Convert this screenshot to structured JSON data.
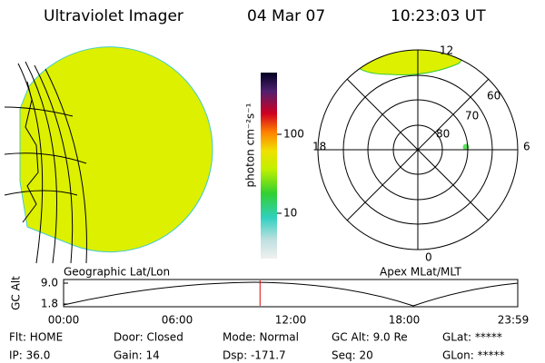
{
  "header": {
    "title": "Ultraviolet Imager",
    "date": "04 Mar 07",
    "time": "10:23:03 UT"
  },
  "colorbar": {
    "label": "photon cm⁻²s⁻¹",
    "scale": "log",
    "ticks": [
      10,
      100
    ]
  },
  "geo_label": "Geographic Lat/Lon",
  "polar": {
    "label": "Apex MLat/MLT",
    "mlt_labels": [
      "12",
      "6",
      "0",
      "18"
    ],
    "lat_labels": [
      "60",
      "70",
      "80"
    ]
  },
  "altitude_plot": {
    "ylabel": "GC Alt",
    "yticks": [
      {
        "value": 1.8,
        "label": "1.8"
      },
      {
        "value": 9.0,
        "label": "9.0"
      }
    ],
    "ylim": [
      1.8,
      9.0
    ],
    "xticks": [
      "00:00",
      "06:00",
      "12:00",
      "18:00",
      "23:59"
    ],
    "marker_hours": 10.38
  },
  "footer": [
    [
      "Flt: HOME",
      "Door: Closed",
      "Mode: Normal",
      "GC Alt: 9.0 Re",
      "GLat: *****"
    ],
    [
      "IP: 36.0",
      "Gain: 14",
      "Dsp: -171.7",
      "Seq: 20",
      "GLon: *****"
    ]
  ]
}
